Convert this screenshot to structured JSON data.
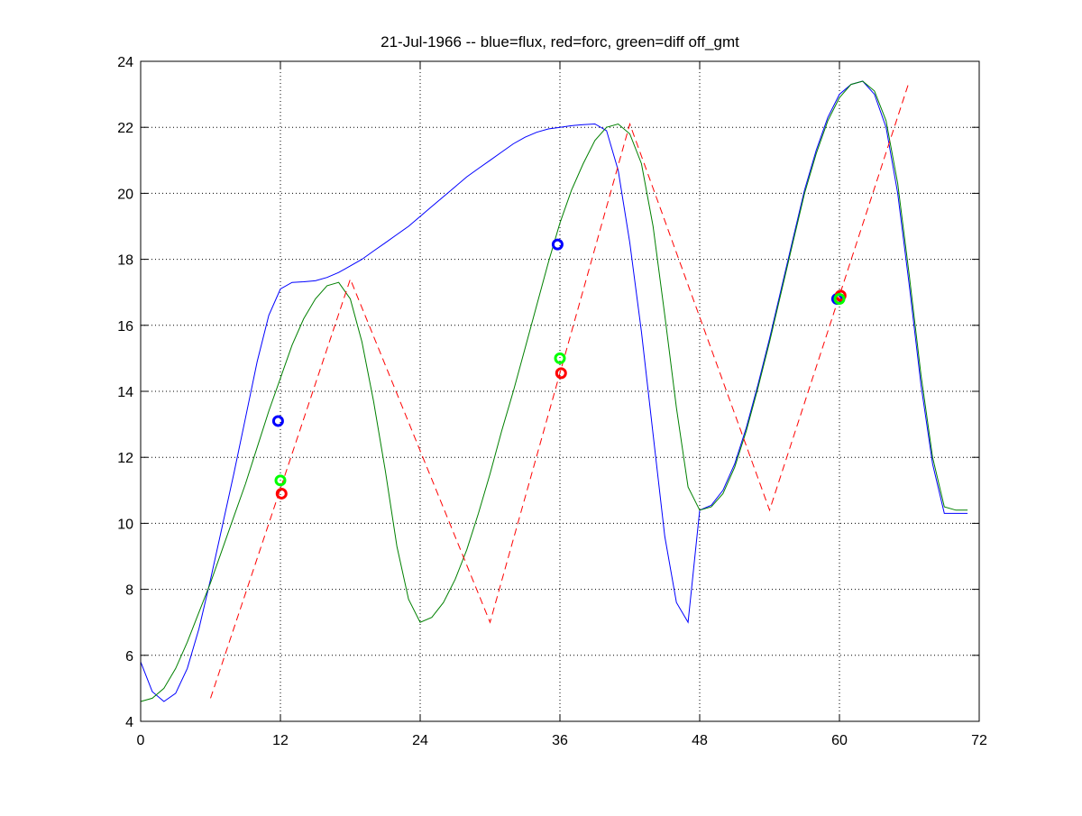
{
  "chart_data": {
    "type": "line",
    "title": "21-Jul-1966 -- blue=flux, red=forc, green=diff off_gmt",
    "xlabel": "",
    "ylabel": "",
    "xlim": [
      0,
      72
    ],
    "ylim": [
      4,
      24
    ],
    "xticks": [
      0,
      12,
      24,
      36,
      48,
      60,
      72
    ],
    "yticks": [
      4,
      6,
      8,
      10,
      12,
      14,
      16,
      18,
      20,
      22,
      24
    ],
    "grid": true,
    "grid_style": "dotted",
    "colors": {
      "flux": "#0000ff",
      "forc": "#ff0000",
      "diff": "#008000",
      "diff_marker": "#00ff00"
    },
    "series": [
      {
        "key": "flux",
        "style": "solid",
        "x": [
          0,
          1,
          2,
          3,
          4,
          5,
          6,
          7,
          8,
          9,
          10,
          11,
          12,
          13,
          14,
          15,
          16,
          17,
          18,
          19,
          20,
          21,
          22,
          23,
          24,
          25,
          26,
          27,
          28,
          29,
          30,
          31,
          32,
          33,
          34,
          35,
          36,
          37,
          38,
          39,
          40,
          41,
          42,
          43,
          44,
          45,
          46,
          47,
          48,
          49,
          50,
          51,
          52,
          53,
          54,
          55,
          56,
          57,
          58,
          59,
          60,
          61,
          62,
          63,
          64,
          65,
          66,
          67,
          68,
          69,
          70,
          71
        ],
        "y": [
          5.8,
          4.9,
          4.6,
          4.85,
          5.6,
          6.8,
          8.3,
          9.9,
          11.5,
          13.2,
          14.9,
          16.3,
          17.1,
          17.3,
          17.32,
          17.35,
          17.45,
          17.6,
          17.8,
          18.0,
          18.25,
          18.5,
          18.75,
          19.0,
          19.3,
          19.6,
          19.9,
          20.2,
          20.5,
          20.75,
          21.0,
          21.25,
          21.5,
          21.7,
          21.85,
          21.95,
          22.0,
          22.05,
          22.08,
          22.1,
          21.9,
          20.7,
          18.5,
          15.8,
          12.7,
          9.6,
          7.6,
          7.0,
          10.4,
          10.55,
          11.0,
          11.8,
          12.9,
          14.2,
          15.6,
          17.1,
          18.6,
          20.1,
          21.3,
          22.3,
          23.0,
          23.3,
          23.4,
          23.0,
          22.0,
          20.0,
          17.2,
          14.2,
          11.8,
          10.3,
          10.3,
          10.3
        ]
      },
      {
        "key": "diff",
        "style": "solid",
        "x": [
          0,
          1,
          2,
          3,
          4,
          5,
          6,
          7,
          8,
          9,
          10,
          11,
          12,
          13,
          14,
          15,
          16,
          17,
          18,
          19,
          20,
          21,
          22,
          23,
          24,
          25,
          26,
          27,
          28,
          29,
          30,
          31,
          32,
          33,
          34,
          35,
          36,
          37,
          38,
          39,
          40,
          41,
          42,
          43,
          44,
          45,
          46,
          47,
          48,
          49,
          50,
          51,
          52,
          53,
          54,
          55,
          56,
          57,
          58,
          59,
          60,
          61,
          62,
          63,
          64,
          65,
          66,
          67,
          68,
          69,
          70,
          71
        ],
        "y": [
          4.6,
          4.7,
          5.0,
          5.6,
          6.4,
          7.3,
          8.2,
          9.2,
          10.2,
          11.2,
          12.3,
          13.4,
          14.4,
          15.4,
          16.2,
          16.8,
          17.2,
          17.3,
          16.8,
          15.5,
          13.7,
          11.6,
          9.3,
          7.7,
          7.0,
          7.15,
          7.6,
          8.3,
          9.2,
          10.3,
          11.5,
          12.8,
          14.0,
          15.3,
          16.6,
          17.9,
          19.1,
          20.1,
          20.9,
          21.6,
          22.0,
          22.1,
          21.8,
          20.9,
          19.0,
          16.3,
          13.5,
          11.1,
          10.4,
          10.5,
          10.9,
          11.7,
          12.8,
          14.1,
          15.5,
          17.0,
          18.5,
          20.0,
          21.2,
          22.2,
          22.9,
          23.3,
          23.4,
          23.1,
          22.2,
          20.3,
          17.5,
          14.5,
          12.0,
          10.5,
          10.4,
          10.4
        ]
      },
      {
        "key": "forc",
        "style": "dashed",
        "x": [
          6,
          18,
          30,
          42,
          54,
          66
        ],
        "y": [
          4.7,
          17.4,
          7.0,
          22.1,
          10.4,
          23.4
        ]
      }
    ],
    "markers": [
      {
        "series": "flux",
        "x": 11.8,
        "y": 13.1
      },
      {
        "series": "diff",
        "x": 12.0,
        "y": 11.3
      },
      {
        "series": "forc",
        "x": 12.1,
        "y": 10.9
      },
      {
        "series": "flux",
        "x": 35.8,
        "y": 18.45
      },
      {
        "series": "diff",
        "x": 36.0,
        "y": 15.0
      },
      {
        "series": "forc",
        "x": 36.1,
        "y": 14.55
      },
      {
        "series": "flux",
        "x": 59.8,
        "y": 16.8
      },
      {
        "series": "forc",
        "x": 60.1,
        "y": 16.9
      },
      {
        "series": "diff",
        "x": 60.0,
        "y": 16.8
      }
    ]
  }
}
